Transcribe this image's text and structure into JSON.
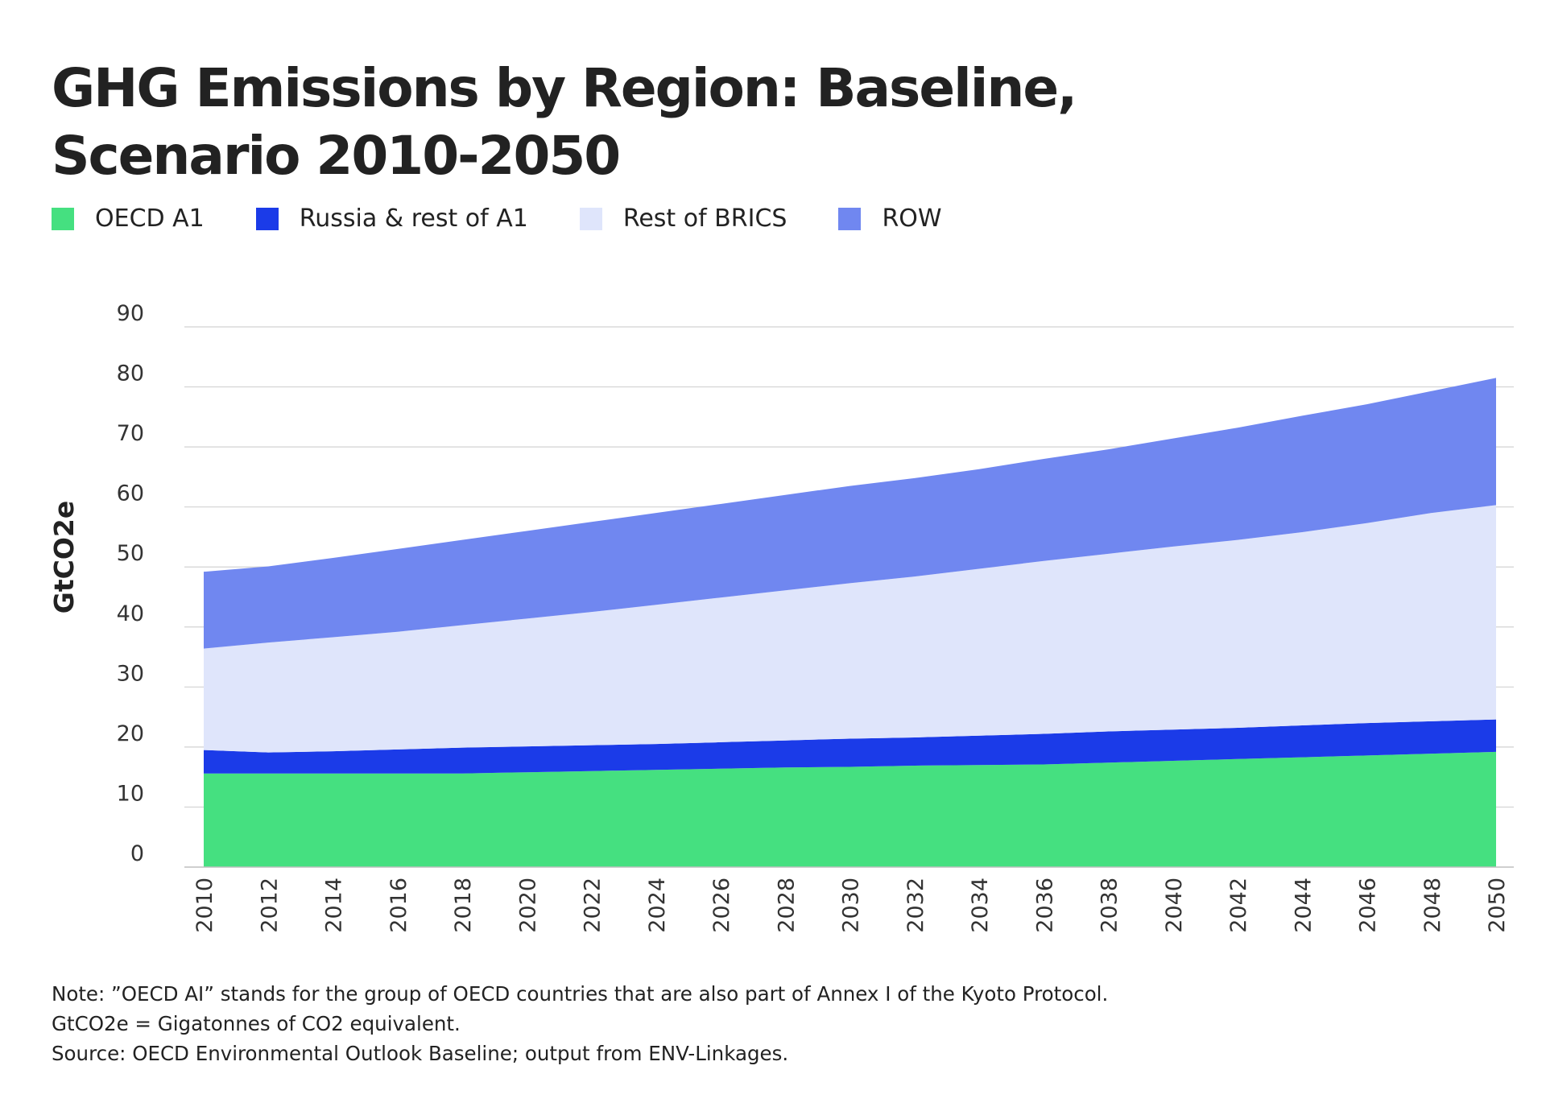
{
  "title": {
    "line1": "GHG Emissions by Region: Baseline,",
    "line2": "Scenario 2010-2050"
  },
  "notes": [
    "Note: ”OECD AI” stands for the group of OECD countries that are also part of Annex I of the Kyoto Protocol.",
    "GtCO2e = Gigatonnes of CO2 equivalent.",
    "Source: OECD Environmental Outlook Baseline; output from ENV-Linkages."
  ],
  "chart_data": {
    "type": "area",
    "stacked": true,
    "title": "GHG Emissions by Region: Baseline, Scenario 2010-2050",
    "xlabel": "",
    "ylabel": "GtCO2e",
    "ylim": [
      0,
      90
    ],
    "yticks": [
      0,
      10,
      20,
      30,
      40,
      50,
      60,
      70,
      80,
      90
    ],
    "grid": true,
    "legend_position": "top-left",
    "x": [
      2010,
      2012,
      2014,
      2016,
      2018,
      2020,
      2022,
      2024,
      2026,
      2028,
      2030,
      2032,
      2034,
      2036,
      2038,
      2040,
      2042,
      2044,
      2046,
      2048,
      2050
    ],
    "xtick_labels": [
      "2010",
      "2012",
      "2014",
      "2016",
      "2018",
      "2020",
      "2022",
      "2024",
      "2026",
      "2028",
      "2030",
      "2032",
      "2034",
      "2036",
      "2038",
      "2040",
      "2042",
      "2044",
      "2046",
      "2048",
      "2050"
    ],
    "series": [
      {
        "name": "OECD A1",
        "color": "#45e080",
        "values": [
          15.6,
          15.6,
          15.6,
          15.6,
          15.6,
          15.8,
          16.0,
          16.2,
          16.4,
          16.6,
          16.7,
          16.9,
          17.0,
          17.1,
          17.4,
          17.7,
          18.0,
          18.3,
          18.6,
          18.9,
          19.2
        ]
      },
      {
        "name": "Russia & rest of A1",
        "color": "#1b3be8",
        "values": [
          3.9,
          3.5,
          3.7,
          4.0,
          4.3,
          4.3,
          4.3,
          4.3,
          4.4,
          4.5,
          4.7,
          4.7,
          4.9,
          5.1,
          5.2,
          5.2,
          5.2,
          5.3,
          5.4,
          5.4,
          5.4
        ]
      },
      {
        "name": "Rest of BRICS",
        "color": "#dfe5fb",
        "values": [
          16.9,
          18.3,
          19.0,
          19.6,
          20.4,
          21.3,
          22.2,
          23.2,
          24.1,
          25.0,
          25.9,
          26.8,
          27.8,
          28.8,
          29.6,
          30.5,
          31.3,
          32.2,
          33.3,
          34.7,
          35.7
        ]
      },
      {
        "name": "ROW",
        "color": "#7087f0",
        "values": [
          12.8,
          12.7,
          13.2,
          13.8,
          14.2,
          14.6,
          15.0,
          15.3,
          15.6,
          15.9,
          16.2,
          16.4,
          16.6,
          17.0,
          17.4,
          18.0,
          18.7,
          19.4,
          19.8,
          20.3,
          21.2
        ]
      }
    ]
  }
}
